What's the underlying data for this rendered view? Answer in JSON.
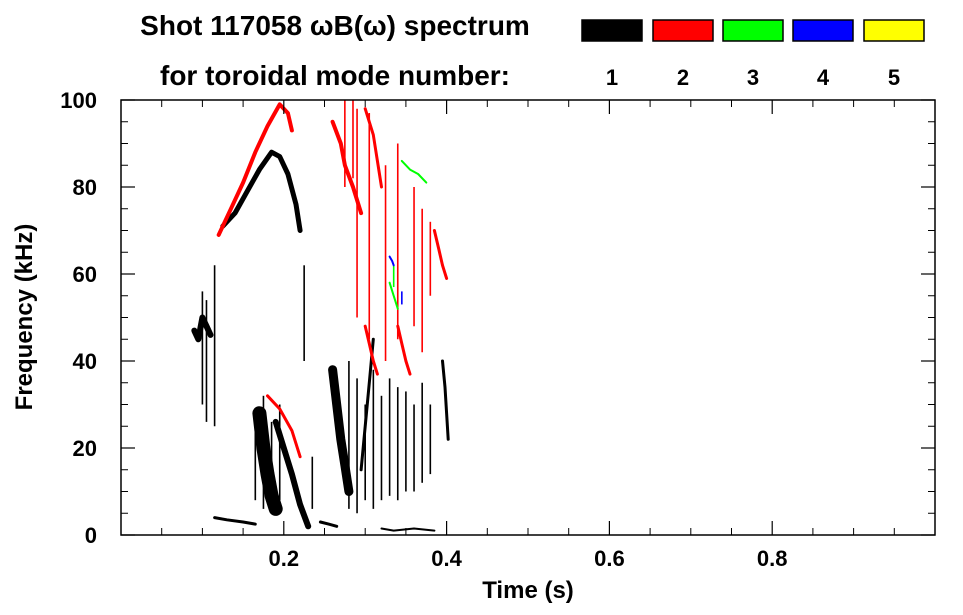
{
  "chart_data": {
    "type": "heatmap",
    "title_line1": "Shot 117058 ωB(ω) spectrum",
    "title_line2": "for toroidal mode number:",
    "xlabel": "Time (s)",
    "ylabel": "Frequency (kHz)",
    "xlim": [
      0,
      1.0
    ],
    "ylim": [
      0,
      100
    ],
    "x_ticks": [
      {
        "value": 0.2,
        "label": "0.2"
      },
      {
        "value": 0.4,
        "label": "0.4"
      },
      {
        "value": 0.6,
        "label": "0.6"
      },
      {
        "value": 0.8,
        "label": "0.8"
      }
    ],
    "y_ticks": [
      {
        "value": 0,
        "label": "0"
      },
      {
        "value": 20,
        "label": "20"
      },
      {
        "value": 40,
        "label": "40"
      },
      {
        "value": 60,
        "label": "60"
      },
      {
        "value": 80,
        "label": "80"
      },
      {
        "value": 100,
        "label": "100"
      }
    ],
    "legend": [
      {
        "label": "1",
        "color": "#000000"
      },
      {
        "label": "2",
        "color": "#ff0000"
      },
      {
        "label": "3",
        "color": "#00ff00"
      },
      {
        "label": "4",
        "color": "#0000ff"
      },
      {
        "label": "5",
        "color": "#ffff00"
      }
    ],
    "traces": [
      {
        "mode": "1",
        "width": 6,
        "points": [
          [
            0.09,
            47
          ],
          [
            0.095,
            45
          ],
          [
            0.1,
            50
          ],
          [
            0.105,
            48
          ],
          [
            0.11,
            46
          ]
        ]
      },
      {
        "mode": "1",
        "width": 5,
        "points": [
          [
            0.125,
            71
          ],
          [
            0.14,
            74
          ],
          [
            0.155,
            79
          ],
          [
            0.17,
            84
          ],
          [
            0.185,
            88
          ],
          [
            0.195,
            87
          ],
          [
            0.205,
            83
          ],
          [
            0.215,
            76
          ],
          [
            0.22,
            70
          ]
        ]
      },
      {
        "mode": "2",
        "width": 4,
        "points": [
          [
            0.12,
            69
          ],
          [
            0.135,
            75
          ],
          [
            0.15,
            81
          ],
          [
            0.165,
            88
          ],
          [
            0.18,
            94
          ],
          [
            0.195,
            99
          ],
          [
            0.205,
            97
          ],
          [
            0.21,
            93
          ]
        ]
      },
      {
        "mode": "1",
        "width": 14,
        "points": [
          [
            0.17,
            28
          ],
          [
            0.175,
            20
          ],
          [
            0.18,
            14
          ],
          [
            0.185,
            9
          ],
          [
            0.19,
            6
          ]
        ]
      },
      {
        "mode": "1",
        "width": 6,
        "points": [
          [
            0.19,
            26
          ],
          [
            0.2,
            20
          ],
          [
            0.21,
            14
          ],
          [
            0.22,
            7
          ],
          [
            0.23,
            2
          ]
        ]
      },
      {
        "mode": "2",
        "width": 3,
        "points": [
          [
            0.18,
            32
          ],
          [
            0.195,
            29
          ],
          [
            0.21,
            24
          ],
          [
            0.22,
            18
          ]
        ]
      },
      {
        "mode": "1",
        "width": 3,
        "points": [
          [
            0.115,
            4
          ],
          [
            0.13,
            3.5
          ],
          [
            0.15,
            3
          ],
          [
            0.165,
            2.5
          ]
        ]
      },
      {
        "mode": "1",
        "width": 3,
        "points": [
          [
            0.245,
            3
          ],
          [
            0.255,
            2.5
          ],
          [
            0.265,
            2
          ]
        ]
      },
      {
        "mode": "1",
        "width": 9,
        "points": [
          [
            0.26,
            38
          ],
          [
            0.265,
            30
          ],
          [
            0.27,
            22
          ],
          [
            0.275,
            16
          ],
          [
            0.28,
            10
          ]
        ]
      },
      {
        "mode": "2",
        "width": 4,
        "points": [
          [
            0.26,
            95
          ],
          [
            0.27,
            90
          ],
          [
            0.275,
            85
          ],
          [
            0.285,
            80
          ],
          [
            0.295,
            74
          ]
        ]
      },
      {
        "mode": "2",
        "width": 3,
        "points": [
          [
            0.3,
            98
          ],
          [
            0.31,
            92
          ],
          [
            0.315,
            86
          ],
          [
            0.32,
            80
          ]
        ]
      },
      {
        "mode": "1",
        "width": 3,
        "points": [
          [
            0.295,
            15
          ],
          [
            0.3,
            25
          ],
          [
            0.305,
            35
          ],
          [
            0.31,
            45
          ]
        ]
      },
      {
        "mode": "2",
        "width": 3,
        "points": [
          [
            0.3,
            48
          ],
          [
            0.305,
            44
          ],
          [
            0.31,
            40
          ],
          [
            0.315,
            37
          ]
        ]
      },
      {
        "mode": "2",
        "width": 3,
        "points": [
          [
            0.34,
            48
          ],
          [
            0.345,
            44
          ],
          [
            0.35,
            40
          ],
          [
            0.355,
            37
          ]
        ]
      },
      {
        "mode": "3",
        "width": 2,
        "points": [
          [
            0.345,
            86
          ],
          [
            0.355,
            84
          ],
          [
            0.365,
            83
          ],
          [
            0.375,
            81
          ]
        ]
      },
      {
        "mode": "4",
        "width": 2,
        "points": [
          [
            0.33,
            64
          ],
          [
            0.333,
            63
          ],
          [
            0.335,
            62
          ]
        ]
      },
      {
        "mode": "2",
        "width": 3,
        "points": [
          [
            0.385,
            70
          ],
          [
            0.39,
            66
          ],
          [
            0.395,
            62
          ],
          [
            0.4,
            59
          ]
        ]
      },
      {
        "mode": "3",
        "width": 2,
        "points": [
          [
            0.33,
            58
          ],
          [
            0.335,
            55
          ],
          [
            0.34,
            52
          ]
        ]
      },
      {
        "mode": "1",
        "width": 3,
        "points": [
          [
            0.395,
            40
          ],
          [
            0.398,
            34
          ],
          [
            0.4,
            28
          ],
          [
            0.402,
            22
          ]
        ]
      },
      {
        "mode": "1",
        "width": 2,
        "points": [
          [
            0.32,
            1.5
          ],
          [
            0.335,
            1
          ],
          [
            0.36,
            1.5
          ],
          [
            0.385,
            1
          ]
        ]
      }
    ],
    "streaks": [
      {
        "mode": "1",
        "x": 0.105,
        "y1": 26,
        "y2": 54
      },
      {
        "mode": "1",
        "x": 0.115,
        "y1": 25,
        "y2": 62
      },
      {
        "mode": "1",
        "x": 0.1,
        "y1": 30,
        "y2": 56
      },
      {
        "mode": "1",
        "x": 0.165,
        "y1": 8,
        "y2": 28
      },
      {
        "mode": "1",
        "x": 0.175,
        "y1": 6,
        "y2": 32
      },
      {
        "mode": "1",
        "x": 0.185,
        "y1": 5,
        "y2": 26
      },
      {
        "mode": "1",
        "x": 0.195,
        "y1": 8,
        "y2": 30
      },
      {
        "mode": "1",
        "x": 0.28,
        "y1": 6,
        "y2": 40
      },
      {
        "mode": "1",
        "x": 0.29,
        "y1": 5,
        "y2": 36
      },
      {
        "mode": "1",
        "x": 0.3,
        "y1": 8,
        "y2": 30
      },
      {
        "mode": "1",
        "x": 0.31,
        "y1": 6,
        "y2": 38
      },
      {
        "mode": "1",
        "x": 0.32,
        "y1": 8,
        "y2": 32
      },
      {
        "mode": "1",
        "x": 0.33,
        "y1": 9,
        "y2": 36
      },
      {
        "mode": "1",
        "x": 0.34,
        "y1": 8,
        "y2": 34
      },
      {
        "mode": "1",
        "x": 0.35,
        "y1": 10,
        "y2": 33
      },
      {
        "mode": "1",
        "x": 0.36,
        "y1": 10,
        "y2": 30
      },
      {
        "mode": "1",
        "x": 0.37,
        "y1": 12,
        "y2": 35
      },
      {
        "mode": "1",
        "x": 0.38,
        "y1": 14,
        "y2": 30
      },
      {
        "mode": "2",
        "x": 0.29,
        "y1": 50,
        "y2": 98
      },
      {
        "mode": "2",
        "x": 0.305,
        "y1": 45,
        "y2": 97
      },
      {
        "mode": "2",
        "x": 0.325,
        "y1": 40,
        "y2": 85
      },
      {
        "mode": "2",
        "x": 0.34,
        "y1": 45,
        "y2": 90
      },
      {
        "mode": "2",
        "x": 0.36,
        "y1": 48,
        "y2": 80
      },
      {
        "mode": "2",
        "x": 0.37,
        "y1": 42,
        "y2": 75
      },
      {
        "mode": "2",
        "x": 0.38,
        "y1": 55,
        "y2": 72
      },
      {
        "mode": "1",
        "x": 0.225,
        "y1": 40,
        "y2": 62
      },
      {
        "mode": "1",
        "x": 0.235,
        "y1": 6,
        "y2": 18
      },
      {
        "mode": "2",
        "x": 0.275,
        "y1": 80,
        "y2": 100
      },
      {
        "mode": "2",
        "x": 0.285,
        "y1": 82,
        "y2": 100
      },
      {
        "mode": "3",
        "x": 0.335,
        "y1": 57,
        "y2": 62
      },
      {
        "mode": "4",
        "x": 0.345,
        "y1": 53,
        "y2": 56
      }
    ]
  }
}
